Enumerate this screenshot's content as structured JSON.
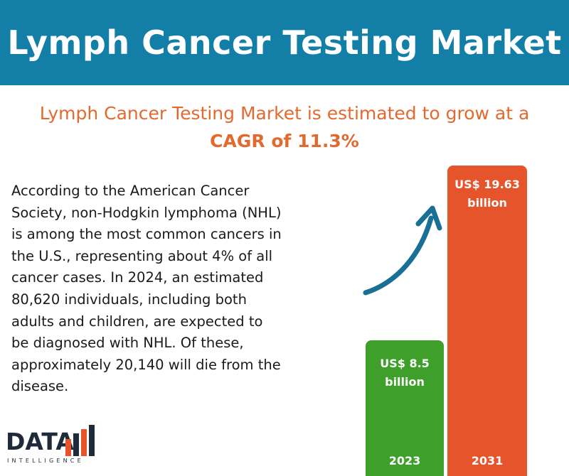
{
  "header": {
    "title": "Lymph Cancer Testing Market"
  },
  "subtitle": {
    "line1": "Lymph Cancer Testing Market  is estimated to grow at a",
    "line2": "CAGR of 11.3%"
  },
  "body_text": "According to the American Cancer\nSociety, non-Hodgkin lymphoma (NHL)\nis among the most common cancers in\nthe U.S., representing about 4% of all\ncancer cases. In 2024, an estimated\n80,620 individuals, including both\nadults and children, are expected to\nbe diagnosed with NHL. Of these,\napproximately 20,140 will die from the\ndisease.",
  "chart_data": {
    "type": "bar",
    "categories": [
      "2023",
      "2031"
    ],
    "values": [
      8.5,
      19.63
    ],
    "value_labels": [
      {
        "line1": "US$ 8.5",
        "line2": "billion"
      },
      {
        "line1": "US$ 19.63",
        "line2": "billion"
      }
    ],
    "colors": [
      "#3ea02b",
      "#e5542b"
    ],
    "cagr": "11.3%",
    "title": "",
    "xlabel": "",
    "ylabel": ""
  },
  "colors": {
    "header_bg": "#137fa6",
    "accent_orange": "#e36a2f",
    "arrow": "#1a6f95"
  },
  "logo": {
    "main": "DATA",
    "sub": "INTELLIGENCE"
  }
}
